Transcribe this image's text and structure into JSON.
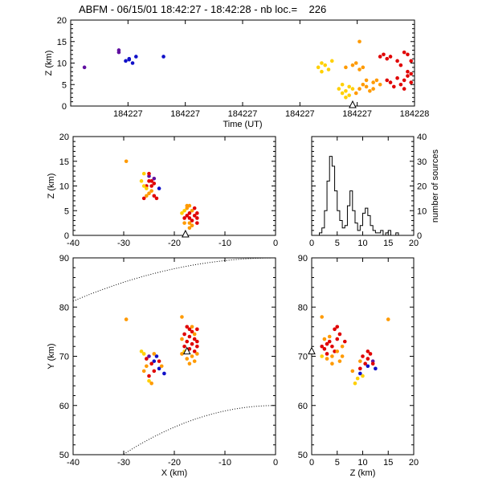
{
  "title": "ABFM - 06/15/01 18:42:27 - 18:42:28 - nb loc.=    226",
  "colors": {
    "axis": "#000000",
    "early": "#1010c8",
    "mid_early": "#6010a0",
    "mid": "#ffd000",
    "late": "#ff9a00",
    "latest": "#e00000",
    "dotted": "#000000"
  },
  "chart_data": [
    {
      "id": "time-height",
      "type": "scatter",
      "xlabel": "Time (UT)",
      "ylabel": "Z (km)",
      "xticks": [
        "184227",
        "184227",
        "184227",
        "184227",
        "184227",
        "184228"
      ],
      "yticks": [
        0,
        5,
        10,
        15,
        20
      ],
      "xlim": [
        0,
        1
      ],
      "ylim": [
        0,
        20
      ],
      "marker": {
        "label": "triangle",
        "x": 0.82,
        "y": 0
      },
      "points": [
        [
          0.04,
          9,
          "mid_early"
        ],
        [
          0.14,
          13,
          "mid_early"
        ],
        [
          0.14,
          12.5,
          "mid_early"
        ],
        [
          0.16,
          10.5,
          "early"
        ],
        [
          0.17,
          11,
          "early"
        ],
        [
          0.18,
          10,
          "early"
        ],
        [
          0.19,
          11.5,
          "early"
        ],
        [
          0.17,
          10.8,
          "early"
        ],
        [
          0.27,
          11.5,
          "early"
        ],
        [
          0.72,
          9,
          "mid"
        ],
        [
          0.73,
          10,
          "mid"
        ],
        [
          0.74,
          9.5,
          "mid"
        ],
        [
          0.75,
          8.5,
          "mid"
        ],
        [
          0.76,
          10.5,
          "mid"
        ],
        [
          0.73,
          8,
          "mid"
        ],
        [
          0.78,
          4,
          "mid"
        ],
        [
          0.79,
          3,
          "mid"
        ],
        [
          0.8,
          3.5,
          "mid"
        ],
        [
          0.81,
          2.5,
          "mid"
        ],
        [
          0.82,
          4,
          "mid"
        ],
        [
          0.8,
          2,
          "mid"
        ],
        [
          0.79,
          5,
          "mid"
        ],
        [
          0.81,
          4.5,
          "mid"
        ],
        [
          0.8,
          9,
          "late"
        ],
        [
          0.82,
          9.5,
          "late"
        ],
        [
          0.83,
          10,
          "late"
        ],
        [
          0.84,
          8.5,
          "late"
        ],
        [
          0.85,
          9,
          "late"
        ],
        [
          0.84,
          15,
          "late"
        ],
        [
          0.83,
          3,
          "late"
        ],
        [
          0.84,
          4,
          "late"
        ],
        [
          0.85,
          5,
          "late"
        ],
        [
          0.86,
          6,
          "late"
        ],
        [
          0.86,
          4.5,
          "late"
        ],
        [
          0.87,
          3.5,
          "late"
        ],
        [
          0.88,
          5.5,
          "late"
        ],
        [
          0.88,
          4,
          "late"
        ],
        [
          0.89,
          6,
          "late"
        ],
        [
          0.9,
          5,
          "late"
        ],
        [
          0.9,
          11.5,
          "latest"
        ],
        [
          0.91,
          12,
          "latest"
        ],
        [
          0.92,
          11,
          "latest"
        ],
        [
          0.93,
          11.5,
          "latest"
        ],
        [
          0.92,
          6,
          "latest"
        ],
        [
          0.93,
          5.5,
          "latest"
        ],
        [
          0.94,
          4.5,
          "latest"
        ],
        [
          0.95,
          6.5,
          "latest"
        ],
        [
          0.96,
          5,
          "latest"
        ],
        [
          0.97,
          6,
          "latest"
        ],
        [
          0.98,
          7,
          "latest"
        ],
        [
          0.99,
          5.5,
          "latest"
        ],
        [
          0.97,
          12.5,
          "latest"
        ],
        [
          0.98,
          12,
          "latest"
        ],
        [
          0.99,
          10.5,
          "latest"
        ],
        [
          0.98,
          8,
          "latest"
        ],
        [
          0.97,
          4,
          "latest"
        ],
        [
          0.99,
          7.5,
          "latest"
        ],
        [
          0.96,
          9.5,
          "latest"
        ],
        [
          0.95,
          10.5,
          "latest"
        ]
      ]
    },
    {
      "id": "xz",
      "type": "scatter",
      "xlabel": "",
      "ylabel": "Z (km)",
      "xticks": [
        -40,
        -30,
        -20,
        -10,
        0
      ],
      "yticks": [
        0,
        5,
        10,
        15,
        20
      ],
      "xlim": [
        -40,
        0
      ],
      "ylim": [
        0,
        20
      ],
      "marker": {
        "label": "triangle",
        "x": -17.8,
        "y": 0
      },
      "points": [
        [
          -29.5,
          15,
          "late"
        ],
        [
          -25,
          12,
          "mid_early"
        ],
        [
          -24,
          11.5,
          "mid_early"
        ],
        [
          -23,
          9.5,
          "early"
        ],
        [
          -24.5,
          11,
          "latest"
        ],
        [
          -25.5,
          10,
          "latest"
        ],
        [
          -24,
          10.5,
          "latest"
        ],
        [
          -25,
          11,
          "latest"
        ],
        [
          -26,
          12.5,
          "mid"
        ],
        [
          -26.5,
          11,
          "mid"
        ],
        [
          -26,
          10,
          "mid"
        ],
        [
          -25.5,
          9.5,
          "mid"
        ],
        [
          -24.5,
          9,
          "late"
        ],
        [
          -25,
          8.5,
          "late"
        ],
        [
          -25.5,
          8,
          "late"
        ],
        [
          -24,
          8,
          "latest"
        ],
        [
          -23.5,
          7.5,
          "latest"
        ],
        [
          -26,
          7.5,
          "latest"
        ],
        [
          -24.5,
          10,
          "latest"
        ],
        [
          -25,
          12.5,
          "latest"
        ],
        [
          -17,
          6,
          "late"
        ],
        [
          -17.5,
          5.5,
          "late"
        ],
        [
          -16.5,
          5,
          "late"
        ],
        [
          -18,
          5,
          "mid"
        ],
        [
          -17,
          4.5,
          "latest"
        ],
        [
          -16,
          4,
          "latest"
        ],
        [
          -17.5,
          4,
          "latest"
        ],
        [
          -18,
          3.5,
          "latest"
        ],
        [
          -16.5,
          3,
          "latest"
        ],
        [
          -17,
          2.5,
          "late"
        ],
        [
          -15.5,
          3.5,
          "latest"
        ],
        [
          -16,
          5.5,
          "latest"
        ],
        [
          -18.5,
          4.5,
          "mid"
        ],
        [
          -17,
          3.5,
          "latest"
        ],
        [
          -15.5,
          4.5,
          "latest"
        ],
        [
          -16.5,
          2,
          "late"
        ],
        [
          -18,
          2.5,
          "late"
        ],
        [
          -17.5,
          6,
          "late"
        ],
        [
          -15.5,
          2.5,
          "latest"
        ],
        [
          -17,
          1.5,
          "late"
        ]
      ]
    },
    {
      "id": "histogram",
      "type": "bar",
      "xlabel": "",
      "ylabel": "number of sources",
      "xticks": [
        0,
        5,
        10,
        15,
        20
      ],
      "yticks": [
        0,
        10,
        20,
        30,
        40
      ],
      "xlim": [
        0,
        20
      ],
      "ylim": [
        0,
        40
      ],
      "bins": [
        0,
        0.5,
        1,
        1.5,
        2,
        2.5,
        3,
        3.5,
        4,
        4.5,
        5,
        5.5,
        6,
        6.5,
        7,
        7.5,
        8,
        8.5,
        9,
        9.5,
        10,
        10.5,
        11,
        11.5,
        12,
        12.5,
        13,
        13.5,
        14,
        14.5,
        15,
        15.5,
        16,
        16.5,
        17,
        17.5,
        18,
        18.5,
        19,
        19.5
      ],
      "values": [
        0,
        0,
        0,
        1,
        3,
        10,
        22,
        32,
        28,
        18,
        10,
        6,
        3,
        4,
        12,
        18,
        10,
        5,
        2,
        4,
        9,
        11,
        8,
        4,
        2,
        1,
        1,
        2,
        0,
        1,
        2,
        0,
        0,
        1,
        0,
        0,
        0,
        0,
        0,
        0
      ]
    },
    {
      "id": "xy",
      "type": "scatter",
      "xlabel": "X (km)",
      "ylabel": "Y (km)",
      "xticks": [
        -40,
        -30,
        -20,
        -10,
        0
      ],
      "yticks": [
        50,
        60,
        70,
        80,
        90
      ],
      "xlim": [
        -40,
        0
      ],
      "ylim": [
        50,
        90
      ],
      "marker": {
        "label": "triangle",
        "x": -17.5,
        "y": 70.8
      },
      "points": [
        [
          -29.5,
          77.5,
          "late"
        ],
        [
          -18.5,
          78,
          "late"
        ],
        [
          -25,
          70,
          "mid_early"
        ],
        [
          -24,
          69,
          "early"
        ],
        [
          -23,
          67.5,
          "early"
        ],
        [
          -22,
          66.5,
          "early"
        ],
        [
          -23.5,
          70,
          "early"
        ],
        [
          -24.5,
          68.5,
          "latest"
        ],
        [
          -25.5,
          69.5,
          "latest"
        ],
        [
          -24,
          67,
          "latest"
        ],
        [
          -23,
          69,
          "latest"
        ],
        [
          -25,
          66,
          "latest"
        ],
        [
          -26,
          70.5,
          "mid"
        ],
        [
          -26.5,
          71,
          "mid"
        ],
        [
          -25,
          65,
          "mid"
        ],
        [
          -24.5,
          64.5,
          "late"
        ],
        [
          -26,
          67,
          "late"
        ],
        [
          -25.5,
          68,
          "late"
        ],
        [
          -24,
          70.5,
          "late"
        ],
        [
          -22.5,
          68,
          "late"
        ],
        [
          -17.5,
          76,
          "latest"
        ],
        [
          -17,
          75.5,
          "latest"
        ],
        [
          -16.5,
          75,
          "latest"
        ],
        [
          -18,
          74.5,
          "latest"
        ],
        [
          -17,
          74,
          "latest"
        ],
        [
          -16,
          73.5,
          "latest"
        ],
        [
          -17.5,
          73,
          "latest"
        ],
        [
          -16.5,
          72.5,
          "latest"
        ],
        [
          -18,
          72,
          "latest"
        ],
        [
          -17,
          71.5,
          "latest"
        ],
        [
          -16,
          71,
          "latest"
        ],
        [
          -15.5,
          72,
          "latest"
        ],
        [
          -18.5,
          73.5,
          "late"
        ],
        [
          -16.5,
          70,
          "late"
        ],
        [
          -17.5,
          69.5,
          "late"
        ],
        [
          -15.5,
          70.5,
          "late"
        ],
        [
          -18,
          71,
          "mid"
        ],
        [
          -16,
          74.5,
          "late"
        ],
        [
          -15.5,
          73,
          "latest"
        ],
        [
          -17,
          68.5,
          "late"
        ],
        [
          -16.5,
          76,
          "late"
        ],
        [
          -18.5,
          70.5,
          "late"
        ],
        [
          -15.5,
          75.5,
          "latest"
        ],
        [
          -16,
          69,
          "late"
        ]
      ]
    },
    {
      "id": "zy",
      "type": "scatter",
      "xlabel": "Z (km)",
      "ylabel": "",
      "xticks": [
        0,
        5,
        10,
        15,
        20
      ],
      "yticks": [
        50,
        60,
        70,
        80,
        90
      ],
      "xlim": [
        0,
        20
      ],
      "ylim": [
        50,
        90
      ],
      "marker": {
        "label": "triangle",
        "x": 0,
        "y": 70.8
      },
      "points": [
        [
          15,
          77.5,
          "late"
        ],
        [
          2,
          78,
          "late"
        ],
        [
          2,
          72,
          "latest"
        ],
        [
          2.5,
          71.5,
          "latest"
        ],
        [
          3,
          72.5,
          "latest"
        ],
        [
          3.5,
          73,
          "latest"
        ],
        [
          4,
          72,
          "latest"
        ],
        [
          4.5,
          71,
          "latest"
        ],
        [
          5,
          73.5,
          "latest"
        ],
        [
          5.5,
          74.5,
          "latest"
        ],
        [
          3,
          70.5,
          "latest"
        ],
        [
          4,
          70,
          "late"
        ],
        [
          5,
          71,
          "late"
        ],
        [
          6,
          72,
          "late"
        ],
        [
          4.5,
          75.5,
          "latest"
        ],
        [
          3.5,
          74,
          "late"
        ],
        [
          2.5,
          73.5,
          "late"
        ],
        [
          6,
          70,
          "late"
        ],
        [
          5.5,
          69,
          "late"
        ],
        [
          5,
          76,
          "latest"
        ],
        [
          4,
          68.5,
          "late"
        ],
        [
          3,
          69.5,
          "late"
        ],
        [
          6.5,
          73,
          "latest"
        ],
        [
          2,
          70,
          "mid"
        ],
        [
          10,
          70,
          "latest"
        ],
        [
          11,
          69.5,
          "latest"
        ],
        [
          10.5,
          68.5,
          "latest"
        ],
        [
          9.5,
          67.5,
          "latest"
        ],
        [
          11.5,
          70.5,
          "latest"
        ],
        [
          12,
          69,
          "mid_early"
        ],
        [
          11,
          68,
          "early"
        ],
        [
          9.5,
          66.5,
          "early"
        ],
        [
          12.5,
          67.5,
          "early"
        ],
        [
          10,
          66,
          "mid"
        ],
        [
          9,
          65.5,
          "mid"
        ],
        [
          8.5,
          64.5,
          "mid"
        ],
        [
          9.5,
          69,
          "late"
        ],
        [
          8,
          67,
          "late"
        ],
        [
          11,
          71,
          "latest"
        ],
        [
          12,
          68.5,
          "latest"
        ]
      ]
    }
  ]
}
